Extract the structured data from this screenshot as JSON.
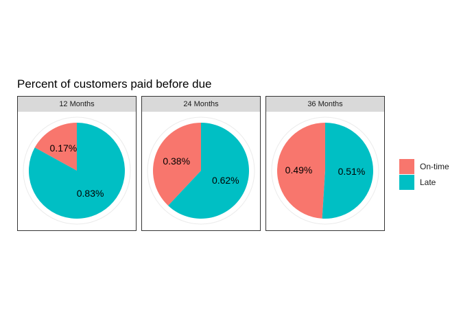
{
  "chart_data": {
    "type": "pie",
    "title": "Percent of customers paid before due",
    "colors": {
      "On-time": "#F8766D",
      "Late": "#00BFC4"
    },
    "legend": {
      "position": "right",
      "entries": [
        "On-time",
        "Late"
      ]
    },
    "facets": [
      {
        "label": "12 Months",
        "slices": [
          {
            "name": "On-time",
            "value": 0.17,
            "label": "0.17%"
          },
          {
            "name": "Late",
            "value": 0.83,
            "label": "0.83%"
          }
        ]
      },
      {
        "label": "24 Months",
        "slices": [
          {
            "name": "On-time",
            "value": 0.38,
            "label": "0.38%"
          },
          {
            "name": "Late",
            "value": 0.62,
            "label": "0.62%"
          }
        ]
      },
      {
        "label": "36 Months",
        "slices": [
          {
            "name": "On-time",
            "value": 0.49,
            "label": "0.49%"
          },
          {
            "name": "Late",
            "value": 0.51,
            "label": "0.51%"
          }
        ]
      }
    ]
  }
}
